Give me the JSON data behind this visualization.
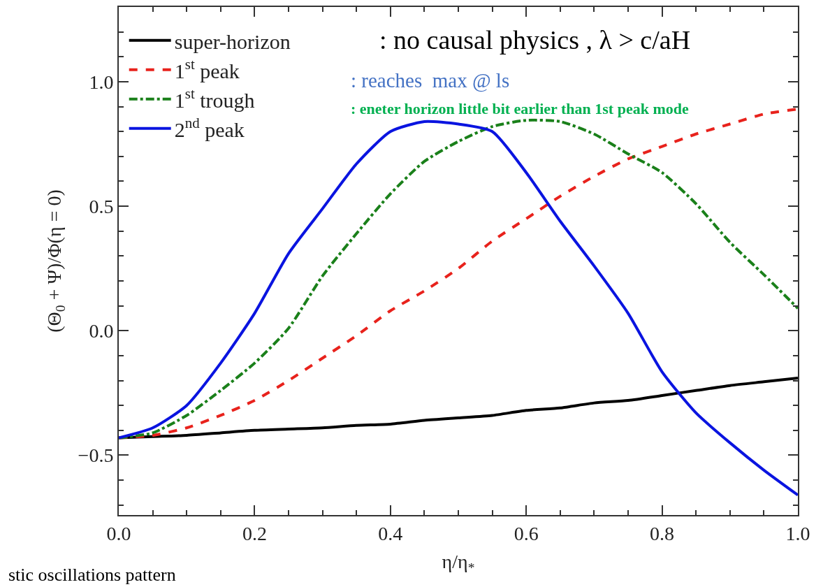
{
  "chart_data": {
    "type": "line",
    "xlabel": "η/η$_{*}$",
    "ylabel": "(Θ$_{0}$ + Ψ)/Φ(η = 0)",
    "x": [
      0,
      0.05,
      0.1,
      0.15,
      0.2,
      0.25,
      0.3,
      0.35,
      0.4,
      0.45,
      0.5,
      0.55,
      0.6,
      0.65,
      0.7,
      0.75,
      0.8,
      0.85,
      0.9,
      0.95,
      1.0
    ],
    "series": [
      {
        "name": "super-horizon",
        "color": "#000000",
        "line_style": "solid",
        "values": [
          -0.43,
          -0.425,
          -0.42,
          -0.41,
          -0.4,
          -0.395,
          -0.39,
          -0.38,
          -0.375,
          -0.36,
          -0.35,
          -0.34,
          -0.32,
          -0.31,
          -0.29,
          -0.28,
          -0.26,
          -0.24,
          -0.22,
          -0.205,
          -0.19
        ]
      },
      {
        "name": "1$^{st}$ peak",
        "color": "#e8221c",
        "line_style": "dashed",
        "values": [
          -0.43,
          -0.42,
          -0.39,
          -0.34,
          -0.28,
          -0.2,
          -0.11,
          -0.02,
          0.08,
          0.16,
          0.25,
          0.36,
          0.45,
          0.54,
          0.62,
          0.69,
          0.74,
          0.79,
          0.83,
          0.87,
          0.89
        ]
      },
      {
        "name": "1$^{st}$ trough",
        "color": "#1a801a",
        "line_style": "dashdot",
        "values": [
          -0.43,
          -0.41,
          -0.34,
          -0.24,
          -0.13,
          0.01,
          0.22,
          0.39,
          0.55,
          0.68,
          0.76,
          0.82,
          0.845,
          0.84,
          0.79,
          0.71,
          0.635,
          0.51,
          0.355,
          0.225,
          0.09
        ]
      },
      {
        "name": "2$^{nd}$ peak",
        "color": "#0a14e0",
        "line_style": "solid",
        "values": [
          -0.43,
          -0.39,
          -0.3,
          -0.13,
          0.07,
          0.31,
          0.49,
          0.67,
          0.8,
          0.84,
          0.83,
          0.8,
          0.635,
          0.44,
          0.26,
          0.07,
          -0.165,
          -0.33,
          -0.45,
          -0.56,
          -0.66
        ]
      }
    ],
    "xlim": [
      0,
      1.0
    ],
    "ylim": [
      -0.74,
      1.3
    ],
    "xticks": [
      {
        "value": 0,
        "label": "0.0"
      },
      {
        "value": 0.05,
        "label": null
      },
      {
        "value": 0.1,
        "label": null
      },
      {
        "value": 0.15,
        "label": null
      },
      {
        "value": 0.2,
        "label": "0.2"
      },
      {
        "value": 0.25,
        "label": null
      },
      {
        "value": 0.3,
        "label": null
      },
      {
        "value": 0.35,
        "label": null
      },
      {
        "value": 0.4,
        "label": "0.4"
      },
      {
        "value": 0.45,
        "label": null
      },
      {
        "value": 0.5,
        "label": null
      },
      {
        "value": 0.55,
        "label": null
      },
      {
        "value": 0.6,
        "label": "0.6"
      },
      {
        "value": 0.65,
        "label": null
      },
      {
        "value": 0.7,
        "label": null
      },
      {
        "value": 0.75,
        "label": null
      },
      {
        "value": 0.8,
        "label": "0.8"
      },
      {
        "value": 0.85,
        "label": null
      },
      {
        "value": 0.9,
        "label": null
      },
      {
        "value": 0.95,
        "label": null
      },
      {
        "value": 1.0,
        "label": "1.0"
      }
    ],
    "yticks": [
      {
        "value": -0.7,
        "label": null
      },
      {
        "value": -0.6,
        "label": null
      },
      {
        "value": -0.5,
        "label": "−0.5"
      },
      {
        "value": -0.4,
        "label": null
      },
      {
        "value": -0.3,
        "label": null
      },
      {
        "value": -0.2,
        "label": null
      },
      {
        "value": -0.1,
        "label": null
      },
      {
        "value": 0,
        "label": "0.0"
      },
      {
        "value": 0.1,
        "label": null
      },
      {
        "value": 0.2,
        "label": null
      },
      {
        "value": 0.3,
        "label": null
      },
      {
        "value": 0.4,
        "label": null
      },
      {
        "value": 0.5,
        "label": "0.5"
      },
      {
        "value": 0.6,
        "label": null
      },
      {
        "value": 0.7,
        "label": null
      },
      {
        "value": 0.8,
        "label": null
      },
      {
        "value": 0.9,
        "label": null
      },
      {
        "value": 1.0,
        "label": "1.0"
      },
      {
        "value": 1.1,
        "label": null
      },
      {
        "value": 1.2,
        "label": null
      }
    ],
    "grid": false,
    "legend": "top left",
    "marker": "none",
    "annotations": [
      ": no causal physics , λ > c/aH",
      ": reaches  max @ ls",
      ": eneter horizon little bit earlier than 1st peak mode",
      "stic oscillations pattern"
    ]
  }
}
